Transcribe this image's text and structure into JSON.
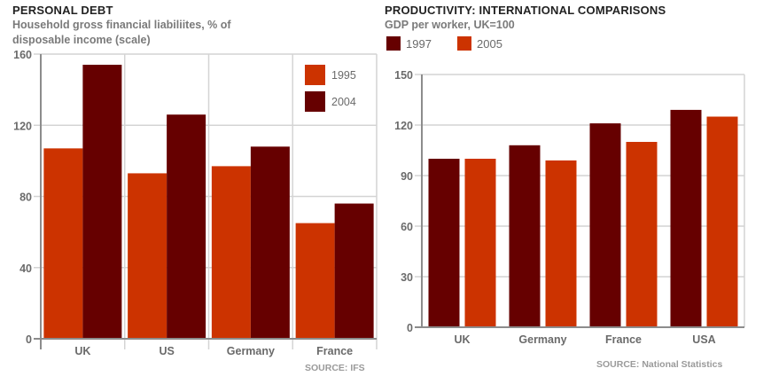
{
  "chart_data": [
    {
      "type": "bar",
      "title": "PERSONAL DEBT",
      "subtitle_lines": [
        "Household gross financial liabiliites, % of",
        "disposable income (scale)"
      ],
      "xlabel": "",
      "ylabel": "",
      "categories": [
        "UK",
        "US",
        "Germany",
        "France"
      ],
      "series": [
        {
          "name": "1995",
          "color": "#cc3300",
          "values": [
            107,
            93,
            97,
            65
          ]
        },
        {
          "name": "2004",
          "color": "#660000",
          "values": [
            154,
            126,
            108,
            76
          ]
        }
      ],
      "ylim": [
        0,
        160
      ],
      "yticks": [
        0,
        40,
        80,
        120,
        160
      ],
      "grid": true,
      "vertical_grid": true,
      "legend_position": "top-right-inside",
      "source": "SOURCE: IFS"
    },
    {
      "type": "bar",
      "title": "PRODUCTIVITY: INTERNATIONAL COMPARISONS",
      "subtitle_lines": [
        "GDP per worker, UK=100"
      ],
      "xlabel": "",
      "ylabel": "",
      "categories": [
        "UK",
        "Germany",
        "France",
        "USA"
      ],
      "series": [
        {
          "name": "1997",
          "color": "#660000",
          "values": [
            100,
            108,
            121,
            129
          ]
        },
        {
          "name": "2005",
          "color": "#cc3300",
          "values": [
            100,
            99,
            110,
            125
          ]
        }
      ],
      "ylim": [
        0,
        150
      ],
      "yticks": [
        0,
        30,
        60,
        90,
        120,
        150
      ],
      "grid": true,
      "vertical_grid": false,
      "legend_position": "top-left-above",
      "source": "SOURCE: National Statistics"
    }
  ]
}
